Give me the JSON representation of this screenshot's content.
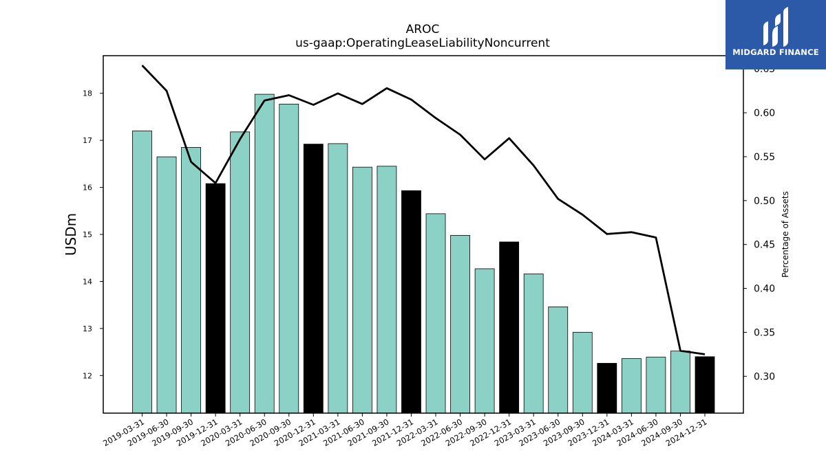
{
  "logo": {
    "text": "MIDGARD FINANCE"
  },
  "chart_data": {
    "type": "bar",
    "title": "AROC",
    "subtitle": "us-gaap:OperatingLeaseLiabilityNoncurrent",
    "ylabel": "USDm",
    "y2label": "Percentage of Assets",
    "ylim": [
      11.2,
      18.8
    ],
    "y2lim": [
      0.258,
      0.665
    ],
    "yticks": [
      12,
      13,
      14,
      15,
      16,
      17,
      18
    ],
    "y2ticks": [
      "0.30",
      "0.35",
      "0.40",
      "0.45",
      "0.50",
      "0.55",
      "0.60",
      "0.65"
    ],
    "categories": [
      "2019-03-31",
      "2019-06-30",
      "2019-09-30",
      "2019-12-31",
      "2020-03-31",
      "2020-06-30",
      "2020-09-30",
      "2020-12-31",
      "2021-03-31",
      "2021-06-30",
      "2021-09-30",
      "2021-12-31",
      "2022-03-31",
      "2022-06-30",
      "2022-09-30",
      "2022-12-31",
      "2023-03-31",
      "2023-06-30",
      "2023-09-30",
      "2023-12-31",
      "2024-03-31",
      "2024-06-30",
      "2024-09-30",
      "2024-12-31"
    ],
    "values": [
      17.2,
      16.65,
      16.85,
      16.08,
      17.18,
      17.98,
      17.77,
      16.92,
      16.93,
      16.43,
      16.45,
      15.93,
      15.44,
      14.98,
      14.27,
      14.84,
      14.16,
      13.46,
      12.92,
      12.26,
      12.36,
      12.39,
      12.52,
      12.4
    ],
    "fiscal_year_end": [
      false,
      false,
      false,
      true,
      false,
      false,
      false,
      true,
      false,
      false,
      false,
      true,
      false,
      false,
      false,
      true,
      false,
      false,
      false,
      true,
      false,
      false,
      false,
      true
    ],
    "line_values": [
      0.654,
      0.625,
      0.544,
      0.52,
      0.57,
      0.614,
      0.62,
      0.609,
      0.622,
      0.61,
      0.628,
      0.615,
      0.594,
      0.575,
      0.547,
      0.571,
      0.54,
      0.502,
      0.484,
      0.462,
      0.464,
      0.458,
      0.329,
      0.325
    ],
    "colors": {
      "bar": "#8cd1c6",
      "bar_highlight": "#000000",
      "line": "#000000"
    }
  }
}
